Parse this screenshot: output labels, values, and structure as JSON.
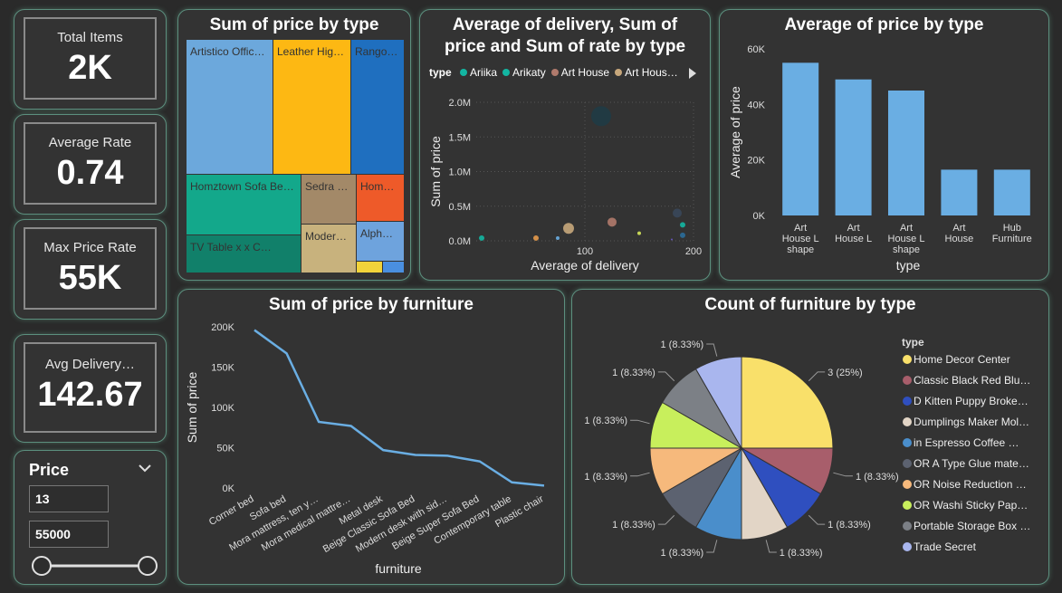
{
  "kpis": [
    {
      "label": "Total Items",
      "value": "2K"
    },
    {
      "label": "Average Rate",
      "value": "0.74"
    },
    {
      "label": "Max Price Rate",
      "value": "55K"
    },
    {
      "label": "Avg Delivery…",
      "value": "142.67"
    }
  ],
  "slicer": {
    "title": "Price",
    "min_value": "13",
    "max_value": "55000",
    "range_low": 0,
    "range_high": 1
  },
  "treemap": {
    "title": "Sum of price by type",
    "items": [
      {
        "label": "Artistico Offic…",
        "color": "#6ca8dc"
      },
      {
        "label": "Leather Hig…",
        "color": "#fdb813"
      },
      {
        "label": "Rango…",
        "color": "#1f6fbf"
      },
      {
        "label": "Homztown Sofa Be…",
        "color": "#13a88b"
      },
      {
        "label": "TV Table x x C…",
        "color": "#11806a"
      },
      {
        "label": "Sedra …",
        "color": "#a38968"
      },
      {
        "label": "Moder…",
        "color": "#c8b27d"
      },
      {
        "label": "Hom…",
        "color": "#ee5a29"
      },
      {
        "label": "Alph…",
        "color": "#6ea3dd"
      },
      {
        "label": "",
        "color": "#f2d33a"
      },
      {
        "label": "",
        "color": "#4a8fe0"
      }
    ]
  },
  "scatter": {
    "title_line1": "Average of delivery, Sum of",
    "title_line2": "price and Sum of rate by type",
    "legend_title": "type",
    "legend": [
      {
        "name": "Ariika",
        "color": "#13b6a2"
      },
      {
        "name": "Arikaty",
        "color": "#13b6a2"
      },
      {
        "name": "Art House",
        "color": "#b07a6c"
      },
      {
        "name": "Art Hous…",
        "color": "#c7a77b"
      }
    ],
    "xlabel": "Average of delivery",
    "ylabel": "Sum of price",
    "yticks": [
      "2.0M",
      "1.5M",
      "1.0M",
      "0.5M",
      "0.0M"
    ],
    "xticks": [
      "100",
      "200"
    ]
  },
  "bar": {
    "title": "Average of price by type",
    "xlabel": "type",
    "ylabel": "Average of price",
    "yticks": [
      "60K",
      "40K",
      "20K",
      "0K"
    ],
    "color": "#6aaee3"
  },
  "line": {
    "title": "Sum of price by furniture",
    "xlabel": "furniture",
    "ylabel": "Sum of price",
    "yticks": [
      "200K",
      "150K",
      "100K",
      "50K",
      "0K"
    ],
    "color": "#6aaee3"
  },
  "pie": {
    "title": "Count of furniture by type",
    "legend_title": "type"
  },
  "chart_data": [
    {
      "type": "scatter",
      "title": "Average of delivery, Sum of price and Sum of rate by type",
      "xlabel": "Average of delivery",
      "ylabel": "Sum of price",
      "xlim": [
        0,
        200
      ],
      "ylim": [
        0,
        2000000
      ],
      "points": [
        {
          "x": 115,
          "y": 1800000,
          "size": 11,
          "color": "#1f3b45"
        },
        {
          "x": 125,
          "y": 270000,
          "size": 5,
          "color": "#b07a6c"
        },
        {
          "x": 85,
          "y": 180000,
          "size": 6,
          "color": "#c7a77b"
        },
        {
          "x": 185,
          "y": 400000,
          "size": 5,
          "color": "#39475a"
        },
        {
          "x": 190,
          "y": 230000,
          "size": 3,
          "color": "#13b6a2"
        },
        {
          "x": 150,
          "y": 110000,
          "size": 2,
          "color": "#d6e85b"
        },
        {
          "x": 190,
          "y": 80000,
          "size": 3,
          "color": "#2a6d9a"
        },
        {
          "x": 55,
          "y": 40000,
          "size": 3,
          "color": "#e49a4b"
        },
        {
          "x": 5,
          "y": 40000,
          "size": 3,
          "color": "#13b6a2"
        },
        {
          "x": 75,
          "y": 40000,
          "size": 2,
          "color": "#6aaee3"
        },
        {
          "x": 180,
          "y": 20000,
          "size": 1,
          "color": "#6a5acd"
        }
      ]
    },
    {
      "type": "bar",
      "title": "Average of price by type",
      "categories": [
        "Art House L shape",
        "Art House L",
        "Art House L shape",
        "Art House",
        "Hub Furniture"
      ],
      "category_lines": [
        [
          "Art",
          "House L",
          "shape"
        ],
        [
          "Art",
          "House L"
        ],
        [
          "Art",
          "House L",
          "shape"
        ],
        [
          "Art",
          "House"
        ],
        [
          "Hub",
          "Furniture"
        ]
      ],
      "values": [
        55000,
        49000,
        45000,
        16500,
        16500
      ],
      "xlabel": "type",
      "ylabel": "Average of price",
      "ylim": [
        0,
        60000
      ]
    },
    {
      "type": "line",
      "title": "Sum of price by furniture",
      "categories": [
        "Corner bed",
        "Sofa bed",
        "Mora mattress, ten y…",
        "Mora medical mattre…",
        "Metal desk",
        "Beige Classic Sofa Bed",
        "Modern desk with sid…",
        "Beige Super Sofa Bed",
        "Contemporary table",
        "Plastic chair"
      ],
      "values": [
        196000,
        167000,
        82000,
        77000,
        47000,
        41000,
        40000,
        33000,
        7000,
        3000
      ],
      "xlabel": "furniture",
      "ylabel": "Sum of price",
      "ylim": [
        0,
        200000
      ]
    },
    {
      "type": "pie",
      "title": "Count of furniture by type",
      "slices": [
        {
          "name": "Home Decor Center",
          "value": 3,
          "label": "3 (25%)",
          "color": "#f9e06a"
        },
        {
          "name": "Classic Black Red Blu…",
          "value": 1,
          "label": "1 (8.33%)",
          "color": "#a85e6b"
        },
        {
          "name": "D Kitten Puppy Broke…",
          "value": 1,
          "label": "1 (8.33%)",
          "color": "#2f4fbf"
        },
        {
          "name": "Dumplings Maker Mol…",
          "value": 1,
          "label": "1 (8.33%)",
          "color": "#e2d5c6"
        },
        {
          "name": "in   Espresso Coffee …",
          "value": 1,
          "label": "1 (8.33%)",
          "color": "#4a8ecb"
        },
        {
          "name": "OR A Type Glue mate…",
          "value": 1,
          "label": "1 (8.33%)",
          "color": "#5c6270"
        },
        {
          "name": "OR Noise Reduction …",
          "value": 1,
          "label": "1 (8.33%)",
          "color": "#f6b97c"
        },
        {
          "name": "OR Washi Sticky Pap…",
          "value": 1,
          "label": "1 (8.33%)",
          "color": "#c8ef5c"
        },
        {
          "name": "Portable Storage Box …",
          "value": 1,
          "label": "1 (8.33%)",
          "color": "#7c8086"
        },
        {
          "name": "Trade Secret",
          "value": 1,
          "label": "1 (8.33%)",
          "color": "#a9b6ee"
        }
      ]
    }
  ]
}
